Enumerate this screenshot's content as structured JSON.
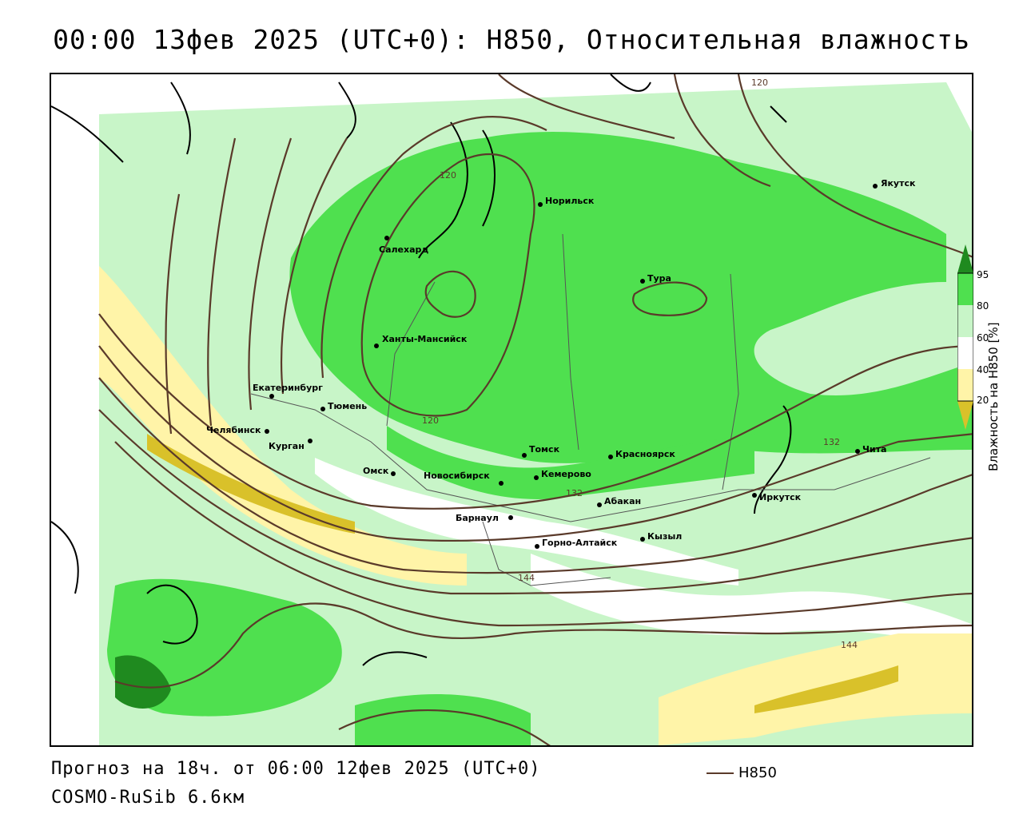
{
  "title": "00:00 13фев 2025 (UTC+0): H850, Относительная влажность",
  "footer": {
    "forecast": "Прогноз на 18ч. от 06:00 12фев 2025 (UTC+0)",
    "model": "COSMO-RuSib 6.6км"
  },
  "legend": {
    "line_label": "H850",
    "line_color": "#5a3a2a"
  },
  "colorbar": {
    "title": "Влажность на H850 [%]",
    "ticks": [
      "95",
      "80",
      "60",
      "40",
      "20"
    ],
    "colors": {
      "c95": "#1f8a1f",
      "c80": "#4fe04f",
      "c60": "#c8f5c8",
      "c40": "#ffffff",
      "c20": "#fff4a8",
      "c0": "#d9c12a"
    }
  },
  "cities": [
    {
      "name": "Якутск"
    },
    {
      "name": "Норильск"
    },
    {
      "name": "Салехард"
    },
    {
      "name": "Тура"
    },
    {
      "name": "Ханты-Мансийск"
    },
    {
      "name": "Екатеринбург"
    },
    {
      "name": "Тюмень"
    },
    {
      "name": "Челябинск"
    },
    {
      "name": "Курган"
    },
    {
      "name": "Омск"
    },
    {
      "name": "Новосибирск"
    },
    {
      "name": "Томск"
    },
    {
      "name": "Кемерово"
    },
    {
      "name": "Красноярск"
    },
    {
      "name": "Абакан"
    },
    {
      "name": "Барнаул"
    },
    {
      "name": "Горно-Алтайск"
    },
    {
      "name": "Кызыл"
    },
    {
      "name": "Иркутск"
    },
    {
      "name": "Чита"
    }
  ],
  "contour_labels": [
    "120",
    "120",
    "120",
    "132",
    "132",
    "144",
    "144"
  ]
}
